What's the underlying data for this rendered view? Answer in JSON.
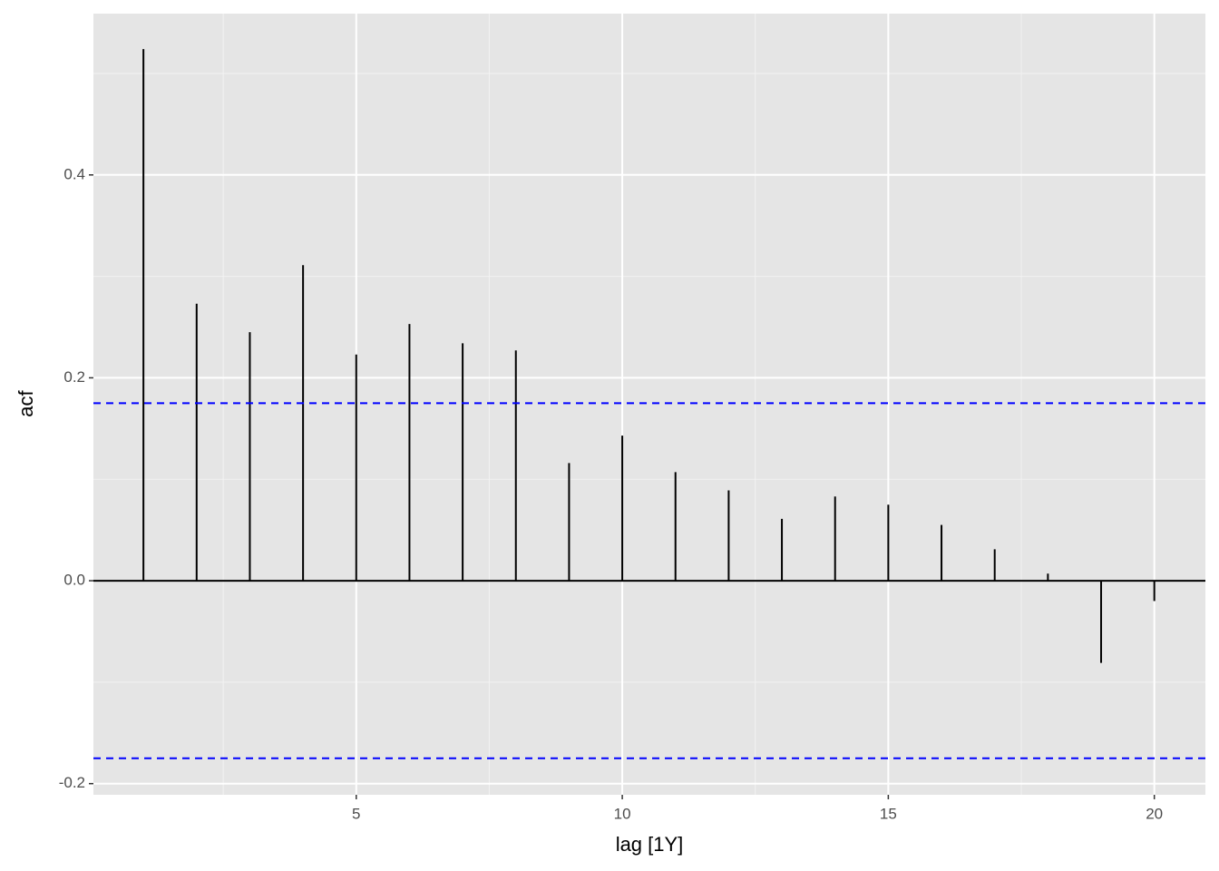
{
  "chart_data": {
    "type": "acf",
    "x_label": "lag [1Y]",
    "y_label": "acf",
    "x": [
      1,
      2,
      3,
      4,
      5,
      6,
      7,
      8,
      9,
      10,
      11,
      12,
      13,
      14,
      15,
      16,
      17,
      18,
      19,
      20
    ],
    "values": [
      0.524,
      0.273,
      0.245,
      0.311,
      0.223,
      0.253,
      0.234,
      0.227,
      0.116,
      0.143,
      0.107,
      0.089,
      0.061,
      0.083,
      0.075,
      0.055,
      0.031,
      0.007,
      -0.081,
      -0.02
    ],
    "color": "#000000",
    "confidence_bounds": [
      0.175,
      -0.175
    ],
    "confidence_color": "#0000ff",
    "xlim": [
      0.06,
      20.96
    ],
    "ylim": [
      -0.211,
      0.559
    ],
    "xticks": [
      5,
      10,
      15,
      20
    ],
    "yticks": [
      -0.2,
      {
        "value": 0,
        "label": "0.0"
      },
      0.2,
      0.4
    ],
    "xminor": [
      2.5,
      7.5,
      12.5,
      17.5
    ],
    "yminor": [
      -0.1,
      0.1,
      0.3,
      0.5
    ],
    "grid": true
  }
}
